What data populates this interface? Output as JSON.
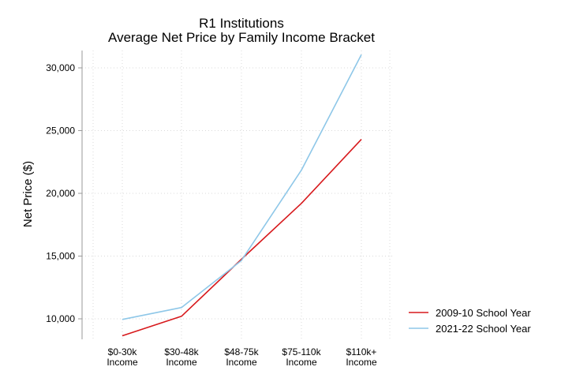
{
  "chart_data": {
    "type": "line",
    "title": "R1 Institutions",
    "subtitle": "Average Net Price by Family Income Bracket",
    "xlabel": "",
    "ylabel": "Net Price ($)",
    "categories": [
      [
        "$0-30k",
        "Income"
      ],
      [
        "$30-48k",
        "Income"
      ],
      [
        "$48-75k",
        "Income"
      ],
      [
        "$75-110k",
        "Income"
      ],
      [
        "$110k+",
        "Income"
      ]
    ],
    "ylim": [
      9000,
      31500
    ],
    "yticks": [
      10000,
      15000,
      20000,
      25000,
      30000
    ],
    "ytick_labels": [
      "10,000",
      "15,000",
      "20,000",
      "25,000",
      "30,000"
    ],
    "grid": true,
    "legend_position": "bottom-right",
    "series": [
      {
        "name": "2009-10 School Year",
        "color": "#d7191c",
        "values": [
          8650,
          10200,
          14750,
          19200,
          24300
        ]
      },
      {
        "name": "2021-22 School Year",
        "color": "#8ec7e8",
        "values": [
          9950,
          10900,
          14650,
          21850,
          31050
        ]
      }
    ]
  }
}
